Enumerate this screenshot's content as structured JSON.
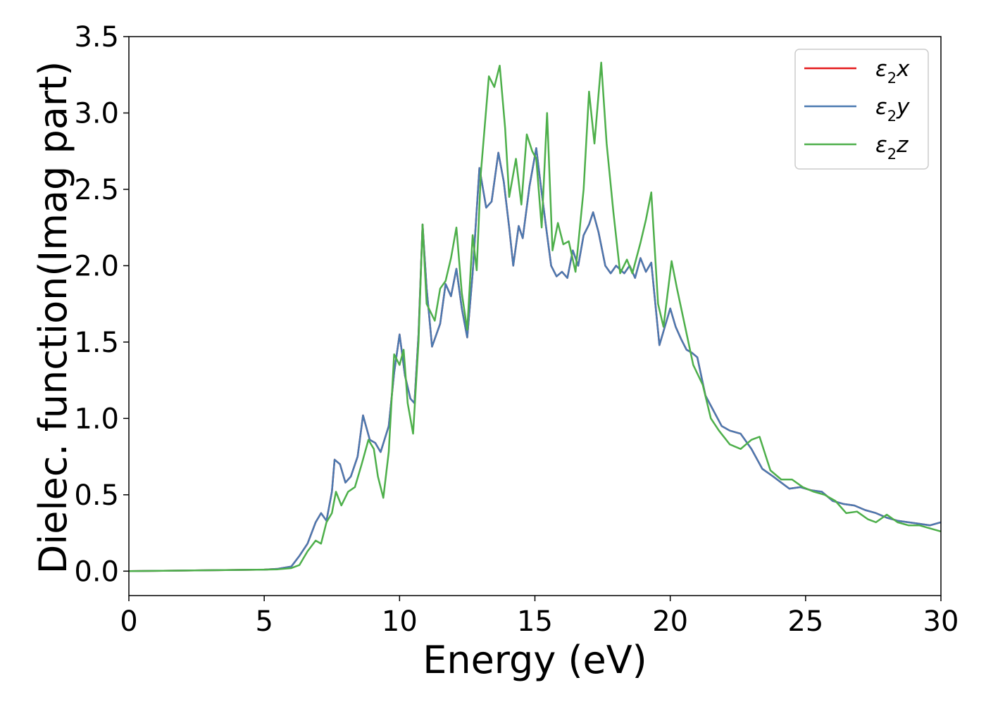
{
  "chart_data": {
    "type": "line",
    "xlabel": "Energy (eV)",
    "ylabel": "Dielec. function(Imag part)",
    "xlim": [
      0,
      30
    ],
    "ylim": [
      -0.16,
      3.5
    ],
    "xticks": [
      "0",
      "5",
      "10",
      "15",
      "20",
      "25",
      "30"
    ],
    "yticks": [
      "0.0",
      "0.5",
      "1.0",
      "1.5",
      "2.0",
      "2.5",
      "3.0",
      "3.5"
    ],
    "grid": false,
    "legend_position": "top-right",
    "colors": {
      "x": "#e41a1c",
      "y": "#4a79b0",
      "z": "#4daf4a"
    },
    "legend": [
      {
        "key": "x",
        "base": "ε",
        "sub": "2",
        "var": "x"
      },
      {
        "key": "y",
        "base": "ε",
        "sub": "2",
        "var": "y"
      },
      {
        "key": "z",
        "base": "ε",
        "sub": "2",
        "var": "z"
      }
    ],
    "series": [
      {
        "key": "xy",
        "points": [
          [
            0,
            0
          ],
          [
            5,
            0.01
          ],
          [
            5.5,
            0.015
          ],
          [
            6,
            0.03
          ],
          [
            6.3,
            0.1
          ],
          [
            6.6,
            0.18
          ],
          [
            6.9,
            0.32
          ],
          [
            7.1,
            0.38
          ],
          [
            7.3,
            0.33
          ],
          [
            7.5,
            0.52
          ],
          [
            7.6,
            0.73
          ],
          [
            7.8,
            0.7
          ],
          [
            8.0,
            0.58
          ],
          [
            8.2,
            0.62
          ],
          [
            8.45,
            0.75
          ],
          [
            8.65,
            1.02
          ],
          [
            8.9,
            0.86
          ],
          [
            9.1,
            0.84
          ],
          [
            9.3,
            0.78
          ],
          [
            9.6,
            0.95
          ],
          [
            9.8,
            1.3
          ],
          [
            10.0,
            1.55
          ],
          [
            10.2,
            1.28
          ],
          [
            10.4,
            1.13
          ],
          [
            10.55,
            1.1
          ],
          [
            10.7,
            1.55
          ],
          [
            10.85,
            2.27
          ],
          [
            11.0,
            1.85
          ],
          [
            11.2,
            1.47
          ],
          [
            11.5,
            1.62
          ],
          [
            11.7,
            1.88
          ],
          [
            11.9,
            1.8
          ],
          [
            12.1,
            1.98
          ],
          [
            12.3,
            1.72
          ],
          [
            12.5,
            1.53
          ],
          [
            12.7,
            1.95
          ],
          [
            12.95,
            2.64
          ],
          [
            13.2,
            2.38
          ],
          [
            13.4,
            2.42
          ],
          [
            13.65,
            2.74
          ],
          [
            13.85,
            2.55
          ],
          [
            14.05,
            2.25
          ],
          [
            14.2,
            2.0
          ],
          [
            14.4,
            2.26
          ],
          [
            14.55,
            2.18
          ],
          [
            14.8,
            2.52
          ],
          [
            15.05,
            2.77
          ],
          [
            15.2,
            2.55
          ],
          [
            15.4,
            2.27
          ],
          [
            15.6,
            2.0
          ],
          [
            15.8,
            1.93
          ],
          [
            16.0,
            1.96
          ],
          [
            16.2,
            1.92
          ],
          [
            16.4,
            2.1
          ],
          [
            16.6,
            2.0
          ],
          [
            16.8,
            2.2
          ],
          [
            17.0,
            2.27
          ],
          [
            17.15,
            2.35
          ],
          [
            17.35,
            2.22
          ],
          [
            17.6,
            2.0
          ],
          [
            17.8,
            1.95
          ],
          [
            18.0,
            2.0
          ],
          [
            18.3,
            1.95
          ],
          [
            18.5,
            2.0
          ],
          [
            18.7,
            1.92
          ],
          [
            18.9,
            2.05
          ],
          [
            19.1,
            1.96
          ],
          [
            19.3,
            2.02
          ],
          [
            19.6,
            1.48
          ],
          [
            19.8,
            1.6
          ],
          [
            20.0,
            1.72
          ],
          [
            20.2,
            1.6
          ],
          [
            20.4,
            1.52
          ],
          [
            20.6,
            1.45
          ],
          [
            20.8,
            1.43
          ],
          [
            21.0,
            1.4
          ],
          [
            21.3,
            1.15
          ],
          [
            21.6,
            1.05
          ],
          [
            21.9,
            0.95
          ],
          [
            22.2,
            0.92
          ],
          [
            22.6,
            0.9
          ],
          [
            23.0,
            0.8
          ],
          [
            23.4,
            0.67
          ],
          [
            23.8,
            0.62
          ],
          [
            24.1,
            0.58
          ],
          [
            24.4,
            0.54
          ],
          [
            24.8,
            0.55
          ],
          [
            25.2,
            0.53
          ],
          [
            25.6,
            0.52
          ],
          [
            26.0,
            0.46
          ],
          [
            26.4,
            0.44
          ],
          [
            26.8,
            0.43
          ],
          [
            27.2,
            0.4
          ],
          [
            27.6,
            0.38
          ],
          [
            28.0,
            0.35
          ],
          [
            28.4,
            0.33
          ],
          [
            28.8,
            0.32
          ],
          [
            29.2,
            0.31
          ],
          [
            29.6,
            0.3
          ],
          [
            30,
            0.32
          ]
        ]
      },
      {
        "key": "z",
        "points": [
          [
            0,
            0
          ],
          [
            5,
            0.01
          ],
          [
            5.5,
            0.012
          ],
          [
            6,
            0.02
          ],
          [
            6.3,
            0.04
          ],
          [
            6.6,
            0.13
          ],
          [
            6.9,
            0.2
          ],
          [
            7.1,
            0.18
          ],
          [
            7.3,
            0.32
          ],
          [
            7.5,
            0.38
          ],
          [
            7.65,
            0.52
          ],
          [
            7.85,
            0.43
          ],
          [
            8.1,
            0.52
          ],
          [
            8.35,
            0.55
          ],
          [
            8.6,
            0.7
          ],
          [
            8.85,
            0.86
          ],
          [
            9.05,
            0.8
          ],
          [
            9.2,
            0.62
          ],
          [
            9.4,
            0.48
          ],
          [
            9.6,
            0.78
          ],
          [
            9.8,
            1.42
          ],
          [
            10.0,
            1.35
          ],
          [
            10.15,
            1.45
          ],
          [
            10.3,
            1.1
          ],
          [
            10.5,
            0.9
          ],
          [
            10.7,
            1.5
          ],
          [
            10.85,
            2.27
          ],
          [
            11.0,
            1.75
          ],
          [
            11.3,
            1.64
          ],
          [
            11.5,
            1.85
          ],
          [
            11.7,
            1.9
          ],
          [
            11.9,
            2.05
          ],
          [
            12.1,
            2.25
          ],
          [
            12.3,
            1.82
          ],
          [
            12.5,
            1.58
          ],
          [
            12.7,
            2.2
          ],
          [
            12.85,
            1.97
          ],
          [
            13.0,
            2.6
          ],
          [
            13.3,
            3.24
          ],
          [
            13.5,
            3.17
          ],
          [
            13.7,
            3.31
          ],
          [
            13.9,
            2.9
          ],
          [
            14.05,
            2.45
          ],
          [
            14.3,
            2.7
          ],
          [
            14.5,
            2.4
          ],
          [
            14.7,
            2.86
          ],
          [
            14.9,
            2.75
          ],
          [
            15.05,
            2.7
          ],
          [
            15.25,
            2.25
          ],
          [
            15.45,
            3.0
          ],
          [
            15.65,
            2.1
          ],
          [
            15.85,
            2.28
          ],
          [
            16.05,
            2.14
          ],
          [
            16.25,
            2.16
          ],
          [
            16.5,
            1.96
          ],
          [
            16.8,
            2.5
          ],
          [
            17.0,
            3.14
          ],
          [
            17.2,
            2.8
          ],
          [
            17.45,
            3.33
          ],
          [
            17.65,
            2.8
          ],
          [
            17.9,
            2.35
          ],
          [
            18.15,
            1.95
          ],
          [
            18.4,
            2.04
          ],
          [
            18.6,
            1.95
          ],
          [
            18.9,
            2.15
          ],
          [
            19.1,
            2.3
          ],
          [
            19.3,
            2.48
          ],
          [
            19.55,
            1.75
          ],
          [
            19.75,
            1.6
          ],
          [
            20.05,
            2.03
          ],
          [
            20.25,
            1.85
          ],
          [
            20.55,
            1.6
          ],
          [
            20.85,
            1.35
          ],
          [
            21.2,
            1.22
          ],
          [
            21.5,
            1.0
          ],
          [
            21.8,
            0.92
          ],
          [
            22.2,
            0.83
          ],
          [
            22.6,
            0.8
          ],
          [
            23.0,
            0.86
          ],
          [
            23.3,
            0.88
          ],
          [
            23.7,
            0.66
          ],
          [
            24.1,
            0.6
          ],
          [
            24.5,
            0.6
          ],
          [
            24.9,
            0.55
          ],
          [
            25.3,
            0.52
          ],
          [
            25.7,
            0.5
          ],
          [
            26.1,
            0.46
          ],
          [
            26.5,
            0.38
          ],
          [
            26.9,
            0.39
          ],
          [
            27.3,
            0.34
          ],
          [
            27.6,
            0.32
          ],
          [
            28.0,
            0.37
          ],
          [
            28.4,
            0.32
          ],
          [
            28.8,
            0.3
          ],
          [
            29.2,
            0.3
          ],
          [
            29.6,
            0.28
          ],
          [
            30,
            0.26
          ]
        ]
      }
    ]
  }
}
